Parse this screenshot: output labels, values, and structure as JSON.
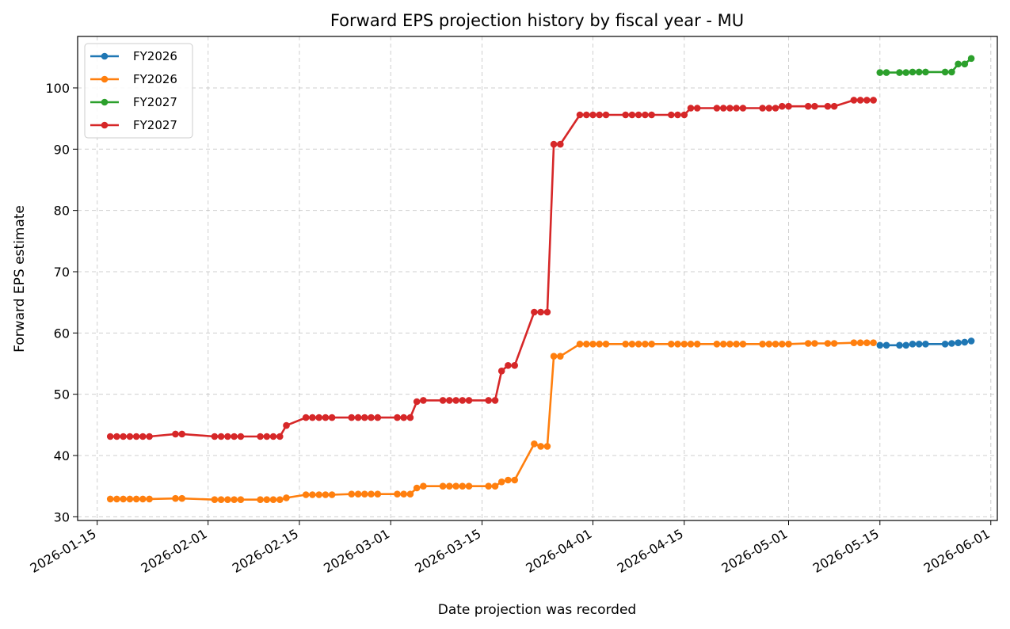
{
  "chart_data": {
    "type": "line",
    "title": "Forward EPS projection history by fiscal year - MU",
    "xlabel": "Date projection was recorded",
    "ylabel": "Forward EPS estimate",
    "xlim": [
      "2026-01-12",
      "2026-06-02"
    ],
    "ylim": [
      29.4,
      108.4
    ],
    "grid": true,
    "legend_position": "top-left",
    "x_ticks": [
      "2026-01-15",
      "2026-02-01",
      "2026-02-15",
      "2026-03-01",
      "2026-03-15",
      "2026-04-01",
      "2026-04-15",
      "2026-05-01",
      "2026-05-15",
      "2026-06-01"
    ],
    "y_ticks": [
      30,
      40,
      50,
      60,
      70,
      80,
      90,
      100
    ],
    "series": [
      {
        "name": "FY2026",
        "color": "#1f77b4",
        "points": [
          [
            "2026-05-15",
            58.0
          ],
          [
            "2026-05-16",
            58.0
          ],
          [
            "2026-05-18",
            58.0
          ],
          [
            "2026-05-19",
            58.0
          ],
          [
            "2026-05-20",
            58.2
          ],
          [
            "2026-05-21",
            58.2
          ],
          [
            "2026-05-22",
            58.2
          ],
          [
            "2026-05-25",
            58.2
          ],
          [
            "2026-05-26",
            58.3
          ],
          [
            "2026-05-27",
            58.4
          ],
          [
            "2026-05-28",
            58.5
          ],
          [
            "2026-05-29",
            58.7
          ]
        ]
      },
      {
        "name": "FY2026",
        "color": "#ff7f0e",
        "points": [
          [
            "2026-01-17",
            32.9
          ],
          [
            "2026-01-18",
            32.9
          ],
          [
            "2026-01-19",
            32.9
          ],
          [
            "2026-01-20",
            32.9
          ],
          [
            "2026-01-21",
            32.9
          ],
          [
            "2026-01-22",
            32.9
          ],
          [
            "2026-01-23",
            32.9
          ],
          [
            "2026-01-27",
            33.0
          ],
          [
            "2026-01-28",
            33.0
          ],
          [
            "2026-02-02",
            32.8
          ],
          [
            "2026-02-03",
            32.8
          ],
          [
            "2026-02-04",
            32.8
          ],
          [
            "2026-02-05",
            32.8
          ],
          [
            "2026-02-06",
            32.8
          ],
          [
            "2026-02-09",
            32.8
          ],
          [
            "2026-02-10",
            32.8
          ],
          [
            "2026-02-11",
            32.8
          ],
          [
            "2026-02-12",
            32.8
          ],
          [
            "2026-02-13",
            33.1
          ],
          [
            "2026-02-16",
            33.6
          ],
          [
            "2026-02-17",
            33.6
          ],
          [
            "2026-02-18",
            33.6
          ],
          [
            "2026-02-19",
            33.6
          ],
          [
            "2026-02-20",
            33.6
          ],
          [
            "2026-02-23",
            33.7
          ],
          [
            "2026-02-24",
            33.7
          ],
          [
            "2026-02-25",
            33.7
          ],
          [
            "2026-02-26",
            33.7
          ],
          [
            "2026-02-27",
            33.7
          ],
          [
            "2026-03-02",
            33.7
          ],
          [
            "2026-03-03",
            33.7
          ],
          [
            "2026-03-04",
            33.7
          ],
          [
            "2026-03-05",
            34.7
          ],
          [
            "2026-03-06",
            35.0
          ],
          [
            "2026-03-09",
            35.0
          ],
          [
            "2026-03-10",
            35.0
          ],
          [
            "2026-03-11",
            35.0
          ],
          [
            "2026-03-12",
            35.0
          ],
          [
            "2026-03-13",
            35.0
          ],
          [
            "2026-03-16",
            35.0
          ],
          [
            "2026-03-17",
            35.0
          ],
          [
            "2026-03-18",
            35.7
          ],
          [
            "2026-03-19",
            36.0
          ],
          [
            "2026-03-20",
            36.0
          ],
          [
            "2026-03-23",
            41.9
          ],
          [
            "2026-03-24",
            41.5
          ],
          [
            "2026-03-25",
            41.5
          ],
          [
            "2026-03-26",
            56.2
          ],
          [
            "2026-03-27",
            56.2
          ],
          [
            "2026-03-30",
            58.2
          ],
          [
            "2026-03-31",
            58.2
          ],
          [
            "2026-04-01",
            58.2
          ],
          [
            "2026-04-02",
            58.2
          ],
          [
            "2026-04-03",
            58.2
          ],
          [
            "2026-04-06",
            58.2
          ],
          [
            "2026-04-07",
            58.2
          ],
          [
            "2026-04-08",
            58.2
          ],
          [
            "2026-04-09",
            58.2
          ],
          [
            "2026-04-10",
            58.2
          ],
          [
            "2026-04-13",
            58.2
          ],
          [
            "2026-04-14",
            58.2
          ],
          [
            "2026-04-15",
            58.2
          ],
          [
            "2026-04-16",
            58.2
          ],
          [
            "2026-04-17",
            58.2
          ],
          [
            "2026-04-20",
            58.2
          ],
          [
            "2026-04-21",
            58.2
          ],
          [
            "2026-04-22",
            58.2
          ],
          [
            "2026-04-23",
            58.2
          ],
          [
            "2026-04-24",
            58.2
          ],
          [
            "2026-04-27",
            58.2
          ],
          [
            "2026-04-28",
            58.2
          ],
          [
            "2026-04-29",
            58.2
          ],
          [
            "2026-04-30",
            58.2
          ],
          [
            "2026-05-01",
            58.2
          ],
          [
            "2026-05-04",
            58.3
          ],
          [
            "2026-05-05",
            58.3
          ],
          [
            "2026-05-07",
            58.3
          ],
          [
            "2026-05-08",
            58.3
          ],
          [
            "2026-05-11",
            58.4
          ],
          [
            "2026-05-12",
            58.4
          ],
          [
            "2026-05-13",
            58.4
          ],
          [
            "2026-05-14",
            58.4
          ]
        ]
      },
      {
        "name": "FY2027",
        "color": "#2ca02c",
        "points": [
          [
            "2026-05-15",
            102.5
          ],
          [
            "2026-05-16",
            102.5
          ],
          [
            "2026-05-18",
            102.5
          ],
          [
            "2026-05-19",
            102.5
          ],
          [
            "2026-05-20",
            102.6
          ],
          [
            "2026-05-21",
            102.6
          ],
          [
            "2026-05-22",
            102.6
          ],
          [
            "2026-05-25",
            102.6
          ],
          [
            "2026-05-26",
            102.6
          ],
          [
            "2026-05-27",
            103.9
          ],
          [
            "2026-05-28",
            103.9
          ],
          [
            "2026-05-29",
            104.8
          ]
        ]
      },
      {
        "name": "FY2027",
        "color": "#d62728",
        "points": [
          [
            "2026-01-17",
            43.1
          ],
          [
            "2026-01-18",
            43.1
          ],
          [
            "2026-01-19",
            43.1
          ],
          [
            "2026-01-20",
            43.1
          ],
          [
            "2026-01-21",
            43.1
          ],
          [
            "2026-01-22",
            43.1
          ],
          [
            "2026-01-23",
            43.1
          ],
          [
            "2026-01-27",
            43.5
          ],
          [
            "2026-01-28",
            43.5
          ],
          [
            "2026-02-02",
            43.1
          ],
          [
            "2026-02-03",
            43.1
          ],
          [
            "2026-02-04",
            43.1
          ],
          [
            "2026-02-05",
            43.1
          ],
          [
            "2026-02-06",
            43.1
          ],
          [
            "2026-02-09",
            43.1
          ],
          [
            "2026-02-10",
            43.1
          ],
          [
            "2026-02-11",
            43.1
          ],
          [
            "2026-02-12",
            43.1
          ],
          [
            "2026-02-13",
            44.9
          ],
          [
            "2026-02-16",
            46.2
          ],
          [
            "2026-02-17",
            46.2
          ],
          [
            "2026-02-18",
            46.2
          ],
          [
            "2026-02-19",
            46.2
          ],
          [
            "2026-02-20",
            46.2
          ],
          [
            "2026-02-23",
            46.2
          ],
          [
            "2026-02-24",
            46.2
          ],
          [
            "2026-02-25",
            46.2
          ],
          [
            "2026-02-26",
            46.2
          ],
          [
            "2026-02-27",
            46.2
          ],
          [
            "2026-03-02",
            46.2
          ],
          [
            "2026-03-03",
            46.2
          ],
          [
            "2026-03-04",
            46.2
          ],
          [
            "2026-03-05",
            48.8
          ],
          [
            "2026-03-06",
            49.0
          ],
          [
            "2026-03-09",
            49.0
          ],
          [
            "2026-03-10",
            49.0
          ],
          [
            "2026-03-11",
            49.0
          ],
          [
            "2026-03-12",
            49.0
          ],
          [
            "2026-03-13",
            49.0
          ],
          [
            "2026-03-16",
            49.0
          ],
          [
            "2026-03-17",
            49.0
          ],
          [
            "2026-03-18",
            53.8
          ],
          [
            "2026-03-19",
            54.7
          ],
          [
            "2026-03-20",
            54.7
          ],
          [
            "2026-03-23",
            63.4
          ],
          [
            "2026-03-24",
            63.4
          ],
          [
            "2026-03-25",
            63.4
          ],
          [
            "2026-03-26",
            90.8
          ],
          [
            "2026-03-27",
            90.8
          ],
          [
            "2026-03-30",
            95.6
          ],
          [
            "2026-03-31",
            95.6
          ],
          [
            "2026-04-01",
            95.6
          ],
          [
            "2026-04-02",
            95.6
          ],
          [
            "2026-04-03",
            95.6
          ],
          [
            "2026-04-06",
            95.6
          ],
          [
            "2026-04-07",
            95.6
          ],
          [
            "2026-04-08",
            95.6
          ],
          [
            "2026-04-09",
            95.6
          ],
          [
            "2026-04-10",
            95.6
          ],
          [
            "2026-04-13",
            95.6
          ],
          [
            "2026-04-14",
            95.6
          ],
          [
            "2026-04-15",
            95.6
          ],
          [
            "2026-04-16",
            96.7
          ],
          [
            "2026-04-17",
            96.7
          ],
          [
            "2026-04-20",
            96.7
          ],
          [
            "2026-04-21",
            96.7
          ],
          [
            "2026-04-22",
            96.7
          ],
          [
            "2026-04-23",
            96.7
          ],
          [
            "2026-04-24",
            96.7
          ],
          [
            "2026-04-27",
            96.7
          ],
          [
            "2026-04-28",
            96.7
          ],
          [
            "2026-04-29",
            96.7
          ],
          [
            "2026-04-30",
            97.0
          ],
          [
            "2026-05-01",
            97.0
          ],
          [
            "2026-05-04",
            97.0
          ],
          [
            "2026-05-05",
            97.0
          ],
          [
            "2026-05-07",
            97.0
          ],
          [
            "2026-05-08",
            97.0
          ],
          [
            "2026-05-11",
            98.0
          ],
          [
            "2026-05-12",
            98.0
          ],
          [
            "2026-05-13",
            98.0
          ],
          [
            "2026-05-14",
            98.0
          ]
        ]
      }
    ]
  }
}
